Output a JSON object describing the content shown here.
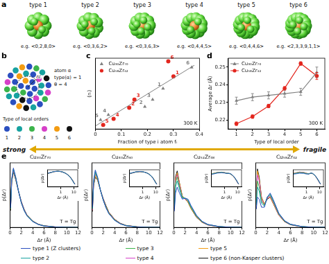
{
  "panel_a": {
    "panel": "a",
    "clusters": [
      {
        "title": "type 1",
        "example": "e.g. <0,2,8,0>"
      },
      {
        "title": "type 2",
        "example": "e.g. <0,3,6,2>"
      },
      {
        "title": "type 3",
        "example": "e.g. <0,3,6,3>"
      },
      {
        "title": "type 4",
        "example": "e.g. <0,4,4,5>"
      },
      {
        "title": "type 5",
        "example": "e.g. <0,4,4,6>"
      },
      {
        "title": "type 6",
        "example": "e.g. <2,3,3,9,1,1>"
      }
    ]
  },
  "panel_b": {
    "panel": "b",
    "atoms": [
      1,
      1,
      1,
      3,
      1,
      5,
      1,
      2,
      4,
      1,
      6,
      2,
      3,
      1,
      5,
      2,
      1,
      4,
      2,
      3,
      1,
      2,
      6,
      5,
      1,
      2,
      3,
      4,
      1,
      2,
      5,
      1,
      3,
      2,
      6,
      1,
      4
    ],
    "colors": [
      "#2b4fbf",
      "#17a2a0",
      "#3cb44b",
      "#d640c8",
      "#f39c12",
      "#111111"
    ],
    "type_names": [
      "1",
      "2",
      "3",
      "4",
      "5",
      "6"
    ],
    "legend_title": "Type of local orders",
    "radius_label": "rc",
    "annotations": [
      "atom α",
      "type(α) = 1",
      "θ = 4"
    ]
  },
  "fragility_arrow": {
    "left": "strong",
    "right": "fragile"
  },
  "chart_data": [
    {
      "panel": "c",
      "type": "scatter",
      "xlabel": "Fraction of type i atom fᵢ",
      "ylabel": "⟨nᵢ⟩",
      "annotation": "300 K",
      "xlim": [
        0,
        0.4
      ],
      "xticks": [
        0,
        0.1,
        0.2,
        0.3,
        0.4
      ],
      "ylim": [
        0,
        7
      ],
      "tick_labels": "x",
      "legend": "top-left",
      "series": [
        {
          "name": "Cu₃₀Zr₇₀",
          "color": "#808080",
          "marker": "triangle",
          "x": [
            0.26,
            0.19,
            0.22,
            0.05,
            0.02,
            0.37
          ],
          "values": [
            4.0,
            2.2,
            2.9,
            1.4,
            0.9,
            6.1
          ],
          "point_labels": [
            "1",
            "2",
            "3",
            "4",
            "5",
            "6"
          ]
        },
        {
          "name": "Cu₅₈Zr₄₂",
          "color": "#e3261e",
          "marker": "circle",
          "x": [
            0.3,
            0.13,
            0.15,
            0.07,
            0.03,
            0.28
          ],
          "values": [
            5.2,
            2.1,
            2.9,
            1.0,
            0.4,
            6.7
          ],
          "point_labels": [
            "1",
            "2",
            "3",
            "4",
            "5",
            "6"
          ]
        }
      ],
      "trend_line": {
        "color": "#808080",
        "x": [
          0,
          0.38
        ],
        "values": [
          0.3,
          6.3
        ]
      }
    },
    {
      "panel": "d",
      "type": "line",
      "xlabel": "Type of local order",
      "ylabel": "Average Δr (Å)",
      "annotation": "300 K",
      "categories": [
        "1",
        "2",
        "3",
        "4",
        "5",
        "6"
      ],
      "ylim": [
        0.215,
        0.255
      ],
      "yticks": [
        0.22,
        0.23,
        0.24,
        0.25
      ],
      "legend": "top-left",
      "series": [
        {
          "name": "Cu₃₀Zr₇₀",
          "color": "#808080",
          "marker": "triangle",
          "values": [
            0.231,
            0.233,
            0.234,
            0.235,
            0.236,
            0.247
          ],
          "errors": [
            0.002,
            0.002,
            0.002,
            0.002,
            0.002,
            0.003
          ]
        },
        {
          "name": "Cu₅₈Zr₄₂",
          "color": "#e3261e",
          "marker": "circle",
          "values": [
            0.218,
            0.222,
            0.228,
            0.238,
            0.252,
            0.245
          ],
          "errors": [
            0.001,
            0.001,
            0.001,
            0.001,
            0.001,
            0.002
          ]
        }
      ]
    },
    {
      "panel": "e",
      "type": "line",
      "title": "Cu₃₀Zr₇₀",
      "xlabel": "Δr (Å)",
      "ylabel": "p(Δr)",
      "annotation": "T = Tg",
      "x": [
        0.1,
        0.3,
        0.6,
        1,
        1.5,
        2,
        2.5,
        3,
        4,
        5,
        6,
        8,
        10,
        12
      ],
      "xlim": [
        0,
        12
      ],
      "xticks": [
        0,
        2,
        4,
        6,
        8,
        10,
        12
      ],
      "ylim": [
        0,
        5
      ],
      "tick_labels": "x",
      "legend": "bottom",
      "series": [
        {
          "name": "type 1 (Z clusters)",
          "color": "#2b4fbf",
          "values": [
            1.5,
            3.8,
            4.6,
            3.9,
            2.8,
            1.9,
            1.3,
            0.9,
            0.45,
            0.22,
            0.11,
            0.03,
            0.01,
            0.004
          ]
        },
        {
          "name": "type 2",
          "color": "#17a2a0",
          "values": [
            1.5,
            3.7,
            4.5,
            3.9,
            2.8,
            1.9,
            1.3,
            0.9,
            0.46,
            0.23,
            0.11,
            0.03,
            0.01,
            0.004
          ]
        },
        {
          "name": "type 3",
          "color": "#3cb44b",
          "values": [
            1.4,
            3.7,
            4.5,
            3.8,
            2.8,
            1.9,
            1.3,
            0.92,
            0.47,
            0.23,
            0.12,
            0.03,
            0.01,
            0.004
          ]
        },
        {
          "name": "type 4",
          "color": "#d640c8",
          "values": [
            1.4,
            3.6,
            4.4,
            3.8,
            2.8,
            1.95,
            1.35,
            0.93,
            0.48,
            0.24,
            0.12,
            0.035,
            0.01,
            0.005
          ]
        },
        {
          "name": "type 5",
          "color": "#f39c12",
          "values": [
            1.4,
            3.6,
            4.4,
            3.8,
            2.8,
            1.95,
            1.35,
            0.94,
            0.48,
            0.24,
            0.12,
            0.035,
            0.01,
            0.005
          ]
        },
        {
          "name": "type 6 (non-Kasper clusters)",
          "color": "#111111",
          "values": [
            1.3,
            3.5,
            4.3,
            3.7,
            2.8,
            2.0,
            1.4,
            0.96,
            0.5,
            0.25,
            0.13,
            0.04,
            0.012,
            0.005
          ]
        }
      ],
      "inset": {
        "log": true,
        "xlim": [
          0.1,
          20
        ],
        "xticks": [
          1,
          10
        ],
        "ylim": [
          0.001,
          10
        ],
        "xlabel": "Δr (Å)",
        "ylabel": "p(Δr)"
      }
    },
    {
      "type": "line",
      "title": "Cu₄₀Zr₆₀",
      "xlabel": "Δr (Å)",
      "ylabel": "p(Δr)",
      "annotation": "T = Tg",
      "x": [
        0.1,
        0.3,
        0.6,
        1,
        1.5,
        2,
        2.5,
        3,
        4,
        5,
        6,
        8,
        10,
        12
      ],
      "xlim": [
        0,
        12
      ],
      "xticks": [
        0,
        2,
        4,
        6,
        8,
        10,
        12
      ],
      "ylim": [
        0,
        4.5
      ],
      "tick_labels": "x",
      "legend": "bottom",
      "series": [
        {
          "name": "type 1 (Z clusters)",
          "color": "#2b4fbf",
          "values": [
            1.4,
            3.3,
            4.0,
            3.5,
            2.6,
            1.9,
            1.35,
            0.95,
            0.5,
            0.25,
            0.12,
            0.03,
            0.01,
            0.004
          ]
        },
        {
          "name": "type 2",
          "color": "#17a2a0",
          "values": [
            1.3,
            3.2,
            3.9,
            3.5,
            2.6,
            1.9,
            1.35,
            0.96,
            0.5,
            0.25,
            0.12,
            0.03,
            0.01,
            0.004
          ]
        },
        {
          "name": "type 3",
          "color": "#3cb44b",
          "values": [
            1.3,
            3.1,
            3.8,
            3.4,
            2.6,
            1.9,
            1.4,
            0.98,
            0.52,
            0.26,
            0.13,
            0.035,
            0.01,
            0.004
          ]
        },
        {
          "name": "type 4",
          "color": "#d640c8",
          "values": [
            1.2,
            3.0,
            3.7,
            3.4,
            2.6,
            1.95,
            1.4,
            1.0,
            0.53,
            0.27,
            0.13,
            0.035,
            0.01,
            0.005
          ]
        },
        {
          "name": "type 5",
          "color": "#f39c12",
          "values": [
            1.2,
            3.0,
            3.6,
            3.3,
            2.6,
            1.95,
            1.45,
            1.02,
            0.55,
            0.28,
            0.14,
            0.04,
            0.012,
            0.005
          ]
        },
        {
          "name": "type 6 (non-Kasper clusters)",
          "color": "#111111",
          "values": [
            1.1,
            2.9,
            3.5,
            3.3,
            2.6,
            2.0,
            1.5,
            1.05,
            0.57,
            0.29,
            0.14,
            0.04,
            0.012,
            0.005
          ]
        }
      ],
      "inset": {
        "log": true,
        "xlim": [
          0.1,
          20
        ],
        "xticks": [
          1,
          10
        ],
        "ylim": [
          0.001,
          10
        ],
        "xlabel": "Δr (Å)",
        "ylabel": "p(Δr)"
      }
    },
    {
      "type": "line",
      "title": "Cu₅₂Zr₄₈",
      "xlabel": "Δr (Å)",
      "ylabel": "p(Δr)",
      "annotation": "T = Tg",
      "x": [
        0.1,
        0.3,
        0.6,
        1,
        1.5,
        2,
        2.5,
        3,
        4,
        5,
        6,
        8,
        10,
        12
      ],
      "xlim": [
        0,
        12
      ],
      "xticks": [
        0,
        2,
        4,
        6,
        8,
        10,
        12
      ],
      "ylim": [
        0,
        3.2
      ],
      "tick_labels": "x",
      "legend": "bottom",
      "series": [
        {
          "name": "type 1 (Z clusters)",
          "color": "#2b4fbf",
          "values": [
            0.8,
            1.7,
            2.0,
            1.7,
            1.4,
            1.45,
            1.4,
            1.1,
            0.6,
            0.3,
            0.15,
            0.04,
            0.012,
            0.005
          ]
        },
        {
          "name": "type 2",
          "color": "#17a2a0",
          "values": [
            0.9,
            2.0,
            2.3,
            1.9,
            1.45,
            1.45,
            1.35,
            1.05,
            0.58,
            0.29,
            0.14,
            0.04,
            0.012,
            0.005
          ]
        },
        {
          "name": "type 3",
          "color": "#3cb44b",
          "values": [
            1.0,
            2.2,
            2.5,
            2.0,
            1.5,
            1.45,
            1.3,
            1.0,
            0.55,
            0.28,
            0.14,
            0.04,
            0.012,
            0.005
          ]
        },
        {
          "name": "type 4",
          "color": "#d640c8",
          "values": [
            1.0,
            2.3,
            2.6,
            2.1,
            1.5,
            1.4,
            1.3,
            1.0,
            0.54,
            0.27,
            0.13,
            0.035,
            0.01,
            0.004
          ]
        },
        {
          "name": "type 5",
          "color": "#f39c12",
          "values": [
            1.1,
            2.4,
            2.7,
            2.2,
            1.55,
            1.4,
            1.25,
            0.95,
            0.52,
            0.26,
            0.13,
            0.035,
            0.01,
            0.004
          ]
        },
        {
          "name": "type 6 (non-Kasper clusters)",
          "color": "#111111",
          "values": [
            1.1,
            2.5,
            2.8,
            2.2,
            1.55,
            1.4,
            1.25,
            0.95,
            0.5,
            0.25,
            0.12,
            0.03,
            0.01,
            0.004
          ]
        }
      ],
      "inset": {
        "log": true,
        "xlim": [
          0.1,
          20
        ],
        "xticks": [
          1,
          10
        ],
        "ylim": [
          0.001,
          10
        ],
        "xlabel": "Δr (Å)",
        "ylabel": "p(Δr)"
      }
    },
    {
      "type": "line",
      "title": "Cu₅₈Zr₄₂",
      "xlabel": "Δr (Å)",
      "ylabel": "p(Δr)",
      "annotation": "T = Tg",
      "x": [
        0.1,
        0.3,
        0.6,
        1,
        1.5,
        2,
        2.5,
        3,
        4,
        5,
        6,
        8,
        10,
        12
      ],
      "xlim": [
        0,
        12
      ],
      "xticks": [
        0,
        2,
        4,
        6,
        8,
        10,
        12
      ],
      "ylim": [
        0,
        3.2
      ],
      "tick_labels": "x",
      "legend": "bottom",
      "series": [
        {
          "name": "type 1 (Z clusters)",
          "color": "#2b4fbf",
          "values": [
            0.9,
            1.5,
            1.4,
            1.0,
            1.0,
            1.5,
            1.7,
            1.4,
            0.7,
            0.33,
            0.16,
            0.04,
            0.012,
            0.005
          ]
        },
        {
          "name": "type 2",
          "color": "#17a2a0",
          "values": [
            1.1,
            2.0,
            1.8,
            1.2,
            1.05,
            1.5,
            1.65,
            1.35,
            0.68,
            0.32,
            0.15,
            0.04,
            0.012,
            0.005
          ]
        },
        {
          "name": "type 3",
          "color": "#3cb44b",
          "values": [
            1.2,
            2.3,
            2.0,
            1.3,
            1.1,
            1.5,
            1.6,
            1.3,
            0.65,
            0.31,
            0.15,
            0.04,
            0.012,
            0.005
          ]
        },
        {
          "name": "type 4",
          "color": "#d640c8",
          "values": [
            1.3,
            2.6,
            2.3,
            1.4,
            1.1,
            1.45,
            1.55,
            1.25,
            0.62,
            0.3,
            0.14,
            0.035,
            0.01,
            0.004
          ]
        },
        {
          "name": "type 5",
          "color": "#f39c12",
          "values": [
            1.4,
            2.8,
            2.4,
            1.5,
            1.15,
            1.45,
            1.5,
            1.2,
            0.6,
            0.29,
            0.14,
            0.035,
            0.01,
            0.004
          ]
        },
        {
          "name": "type 6 (non-Kasper clusters)",
          "color": "#111111",
          "values": [
            1.4,
            2.9,
            2.5,
            1.5,
            1.15,
            1.4,
            1.5,
            1.2,
            0.6,
            0.28,
            0.13,
            0.03,
            0.01,
            0.004
          ]
        }
      ],
      "inset": {
        "log": true,
        "xlim": [
          0.1,
          20
        ],
        "xticks": [
          1,
          10
        ],
        "ylim": [
          0.001,
          10
        ],
        "xlabel": "Δr (Å)",
        "ylabel": "p(Δr)"
      }
    }
  ]
}
